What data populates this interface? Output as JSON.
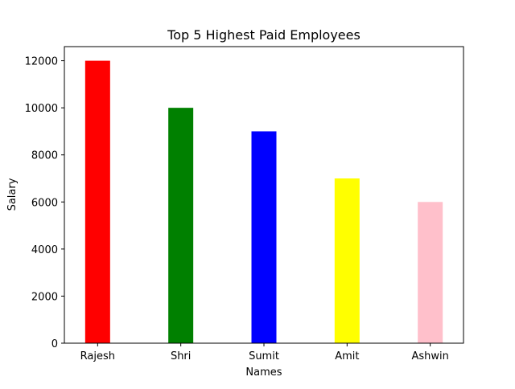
{
  "chart_data": {
    "type": "bar",
    "title": "Top 5 Highest Paid Employees",
    "xlabel": "Names",
    "ylabel": "Salary",
    "categories": [
      "Rajesh",
      "Shri",
      "Sumit",
      "Amit",
      "Ashwin"
    ],
    "values": [
      12000,
      10000,
      9000,
      7000,
      6000
    ],
    "colors": [
      "#ff0000",
      "#008000",
      "#0000ff",
      "#ffff00",
      "#ffc0cb"
    ],
    "ylim": [
      0,
      12600
    ],
    "yticks": [
      0,
      2000,
      4000,
      6000,
      8000,
      10000,
      12000
    ],
    "grid": false,
    "legend": "none"
  }
}
